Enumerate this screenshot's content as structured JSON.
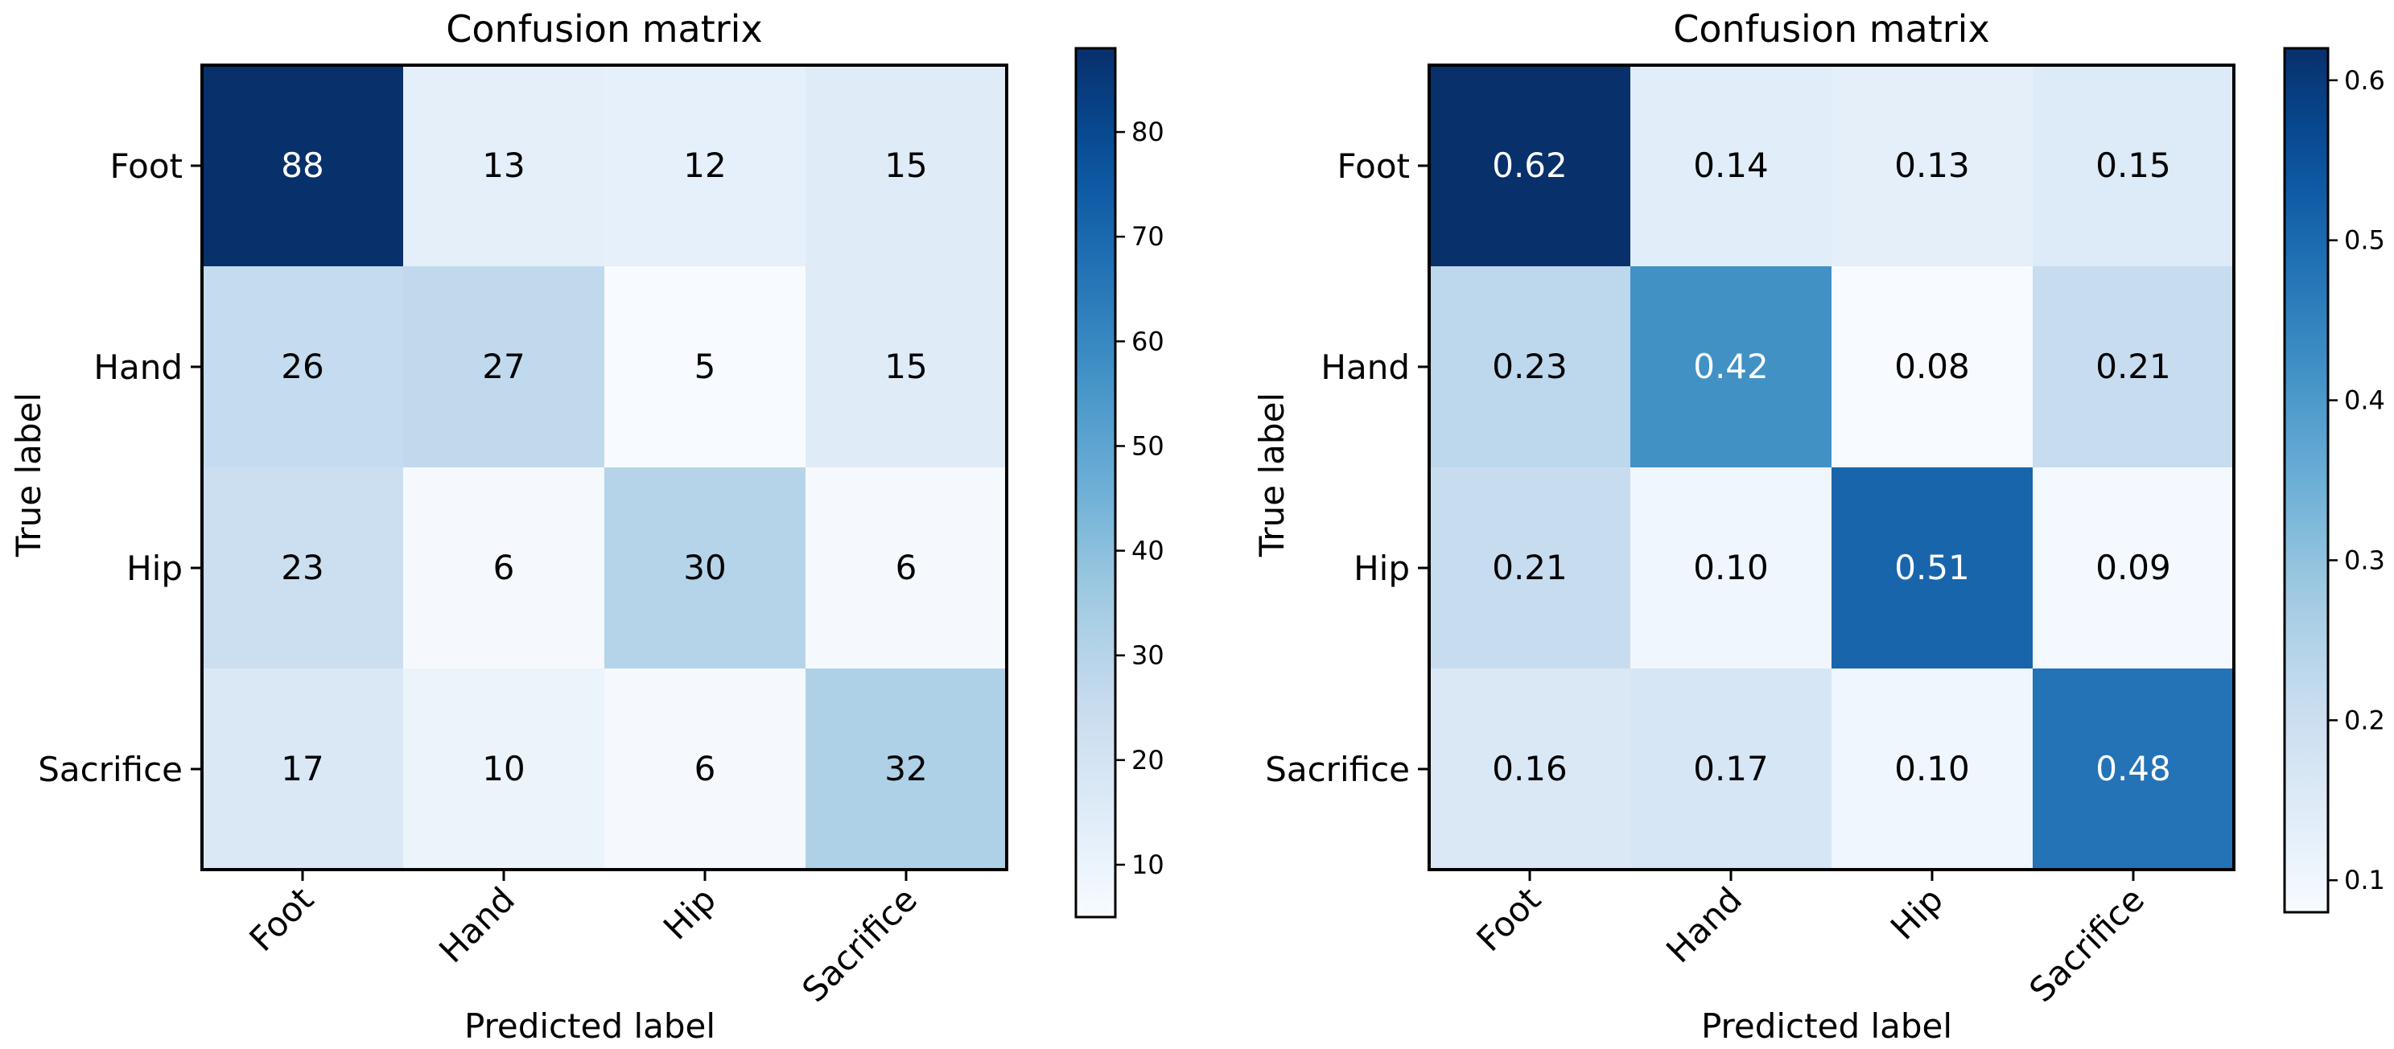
{
  "chart_data": [
    {
      "type": "heatmap",
      "title": "Confusion matrix",
      "xlabel": "Predicted label",
      "ylabel": "True label",
      "x_categories": [
        "Foot",
        "Hand",
        "Hip",
        "Sacrifice"
      ],
      "y_categories": [
        "Foot",
        "Hand",
        "Hip",
        "Sacrifice"
      ],
      "values": [
        [
          88,
          13,
          12,
          15
        ],
        [
          26,
          27,
          5,
          15
        ],
        [
          23,
          6,
          30,
          6
        ],
        [
          17,
          10,
          6,
          32
        ]
      ],
      "value_labels": [
        [
          "88",
          "13",
          "12",
          "15"
        ],
        [
          "26",
          "27",
          "5",
          "15"
        ],
        [
          "23",
          "6",
          "30",
          "6"
        ],
        [
          "17",
          "10",
          "6",
          "32"
        ]
      ],
      "colormap": "Blues",
      "vmin": 5,
      "vmax": 88,
      "colorbar_ticks": [
        10,
        20,
        30,
        40,
        50,
        60,
        70,
        80
      ],
      "colorbar_tick_labels": [
        "10",
        "20",
        "30",
        "40",
        "50",
        "60",
        "70",
        "80"
      ],
      "grid": false,
      "legend": "none"
    },
    {
      "type": "heatmap",
      "title": "Confusion matrix",
      "xlabel": "Predicted label",
      "ylabel": "True label",
      "x_categories": [
        "Foot",
        "Hand",
        "Hip",
        "Sacrifice"
      ],
      "y_categories": [
        "Foot",
        "Hand",
        "Hip",
        "Sacrifice"
      ],
      "values": [
        [
          0.62,
          0.14,
          0.13,
          0.15
        ],
        [
          0.23,
          0.42,
          0.08,
          0.21
        ],
        [
          0.21,
          0.1,
          0.51,
          0.09
        ],
        [
          0.16,
          0.17,
          0.1,
          0.48
        ]
      ],
      "value_labels": [
        [
          "0.62",
          "0.14",
          "0.13",
          "0.15"
        ],
        [
          "0.23",
          "0.42",
          "0.08",
          "0.21"
        ],
        [
          "0.21",
          "0.10",
          "0.51",
          "0.09"
        ],
        [
          "0.16",
          "0.17",
          "0.10",
          "0.48"
        ]
      ],
      "colormap": "Blues",
      "vmin": 0.08,
      "vmax": 0.62,
      "colorbar_ticks": [
        0.1,
        0.2,
        0.3,
        0.4,
        0.5,
        0.6
      ],
      "colorbar_tick_labels": [
        "0.1",
        "0.2",
        "0.3",
        "0.4",
        "0.5",
        "0.6"
      ],
      "grid": false,
      "legend": "none"
    }
  ]
}
